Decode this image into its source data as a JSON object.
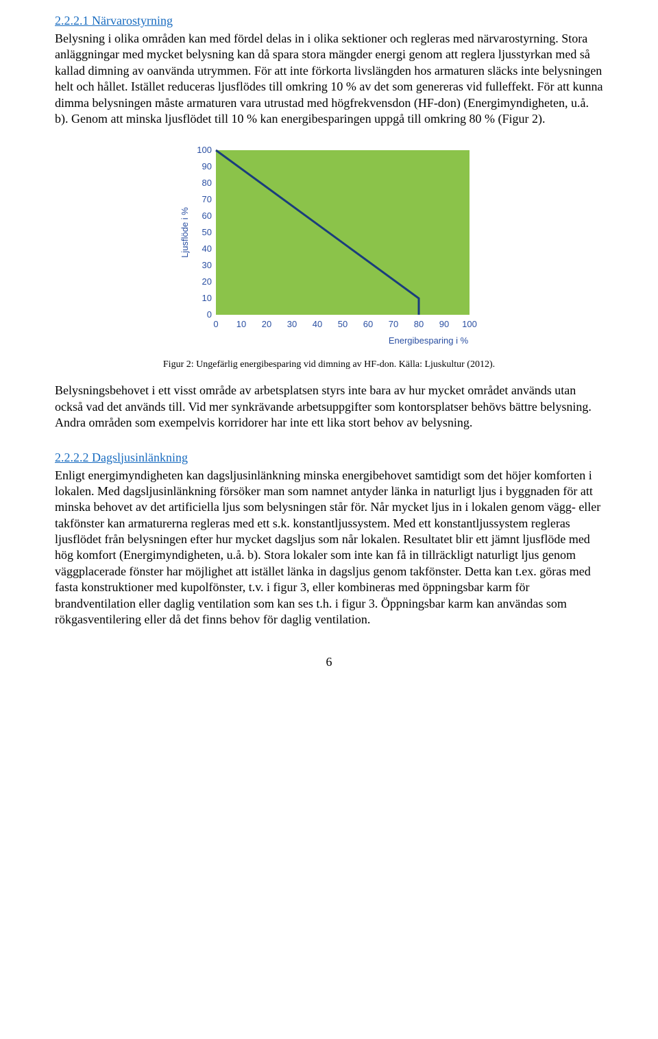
{
  "section1": {
    "heading": "2.2.2.1 Närvarostyrning",
    "body": "Belysning i olika områden kan med fördel delas in i olika sektioner och regleras med närvarostyrning. Stora anläggningar med mycket belysning kan då spara stora mängder energi genom att reglera ljusstyrkan med så kallad dimning av oanvända utrymmen. För att inte förkorta livslängden hos armaturen släcks inte belysningen helt och hållet. Istället reduceras ljusflödes till omkring 10 % av det som genereras vid fulleffekt. För att kunna dimma belysningen måste armaturen vara utrustad med högfrekvensdon (HF-don) (Energimyndigheten, u.å. b). Genom att minska ljusflödet till 10 % kan energibesparingen uppgå till omkring 80 % (Figur 2)."
  },
  "chart": {
    "type": "line",
    "y_label": "Ljusflöde i %",
    "x_label": "Energibesparing i %",
    "xlim": [
      0,
      100
    ],
    "ylim": [
      0,
      100
    ],
    "xticks": [
      0,
      10,
      20,
      30,
      40,
      50,
      60,
      70,
      80,
      90,
      100
    ],
    "yticks": [
      0,
      10,
      20,
      30,
      40,
      50,
      60,
      70,
      80,
      90,
      100
    ],
    "line_points": [
      {
        "x": 0,
        "y": 100
      },
      {
        "x": 80,
        "y": 10
      },
      {
        "x": 80,
        "y": 0
      }
    ],
    "plot_bg": "#8bc34a",
    "line_color": "#1a3d7c",
    "line_width": 3,
    "axis_text_color": "#2a4fa2",
    "axis_font": "Arial",
    "axis_fontsize": 13,
    "caption": "Figur 2: Ungefärlig energibesparing vid dimning av HF-don. Källa: Ljuskultur (2012)."
  },
  "para2": "Belysningsbehovet i ett visst område av arbetsplatsen styrs inte bara av hur mycket området används utan också vad det används till. Vid mer synkrävande arbetsuppgifter som kontorsplatser behövs bättre belysning. Andra områden som exempelvis korridorer har inte ett lika stort behov av belysning.",
  "section2": {
    "heading": "2.2.2.2 Dagsljusinlänkning",
    "body": "Enligt energimyndigheten kan dagsljusinlänkning minska energibehovet samtidigt som det höjer komforten i lokalen. Med dagsljusinlänkning försöker man som namnet antyder länka in naturligt ljus i byggnaden för att minska behovet av det artificiella ljus som belysningen står för. Når mycket ljus in i lokalen genom vägg- eller takfönster kan armaturerna regleras med ett s.k. konstantljussystem. Med ett konstantljussystem regleras ljusflödet från belysningen efter hur mycket dagsljus som når lokalen. Resultatet blir ett jämnt ljusflöde med hög komfort (Energimyndigheten, u.å. b). Stora lokaler som inte kan få in tillräckligt naturligt ljus genom väggplacerade fönster har möjlighet att istället länka in dagsljus genom takfönster. Detta kan t.ex. göras med fasta konstruktioner med kupolfönster, t.v. i figur 3, eller kombineras med öppningsbar karm för brandventilation eller daglig ventilation som kan ses t.h. i figur 3. Öppningsbar karm kan användas som rökgasventilering eller då det finns behov för daglig ventilation."
  },
  "page_number": "6"
}
